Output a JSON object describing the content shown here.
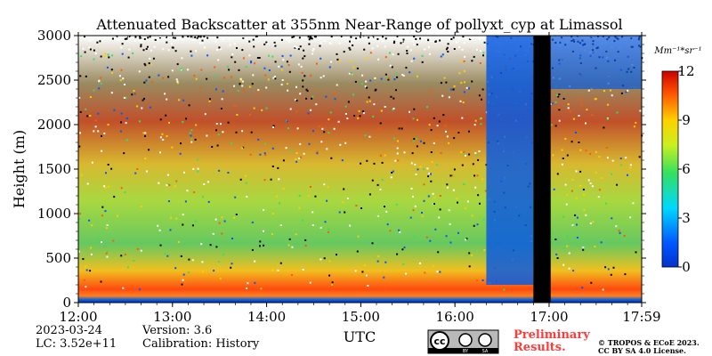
{
  "chart_data": {
    "type": "heatmap",
    "title": "Attenuated Backscatter at 355nm Near-Range of pollyxt_cyp at Limassol",
    "xlabel": "UTC",
    "ylabel": "Height (m)",
    "x_range": [
      "12:00",
      "17:59"
    ],
    "x_ticks": [
      "12:00",
      "13:00",
      "14:00",
      "15:00",
      "16:00",
      "17:00",
      "17:59"
    ],
    "ylim": [
      0,
      3000
    ],
    "y_ticks": [
      0,
      500,
      1000,
      1500,
      2000,
      2500,
      3000
    ],
    "colorbar": {
      "label": "Mm⁻¹*sr⁻¹",
      "range": [
        0,
        12
      ],
      "ticks": [
        0,
        3,
        6,
        9,
        12
      ]
    },
    "data_gap": {
      "start": "16:50",
      "end": "17:01"
    }
  },
  "footer": {
    "date": "2023-03-24",
    "lc": "LC: 3.52e+11",
    "version": "Version: 3.6",
    "calibration": "Calibration: History",
    "prelim_line1": "Preliminary",
    "prelim_line2": "Results.",
    "copyright": "© TROPOS & ECoE 2023.",
    "license": "CC BY SA 4.0 License.",
    "cc_badge_cc": "cc",
    "cc_badge_by": "BY",
    "cc_badge_sa": "SA"
  }
}
